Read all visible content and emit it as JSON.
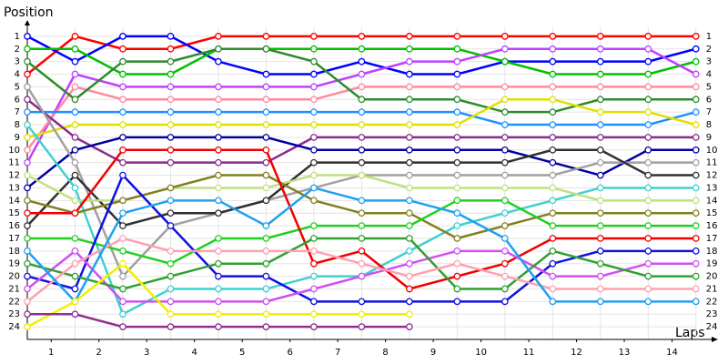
{
  "chart_data": {
    "type": "line",
    "y_label": "Position",
    "x_label": "Laps",
    "x": [
      0,
      1,
      2,
      3,
      4,
      5,
      6,
      7,
      8,
      9,
      10,
      11,
      12,
      13,
      14
    ],
    "xlim": [
      0,
      14.5
    ],
    "ylim": [
      25,
      0
    ],
    "xticks": [
      {
        "value": 0.5,
        "label": "1"
      },
      {
        "value": 1.5,
        "label": "2"
      },
      {
        "value": 2.5,
        "label": "3"
      },
      {
        "value": 3.5,
        "label": "4"
      },
      {
        "value": 4.5,
        "label": "5"
      },
      {
        "value": 5.5,
        "label": "6"
      },
      {
        "value": 6.5,
        "label": "7"
      },
      {
        "value": 7.5,
        "label": "8"
      },
      {
        "value": 8.5,
        "label": "9"
      },
      {
        "value": 9.5,
        "label": "10"
      },
      {
        "value": 10.5,
        "label": "11"
      },
      {
        "value": 11.5,
        "label": "12"
      },
      {
        "value": 12.5,
        "label": "13"
      },
      {
        "value": 13.5,
        "label": "14"
      }
    ],
    "yticks": [
      1,
      2,
      3,
      4,
      5,
      6,
      7,
      8,
      9,
      10,
      11,
      12,
      13,
      14,
      15,
      16,
      17,
      18,
      19,
      20,
      21,
      22,
      23,
      24
    ],
    "grid": true,
    "series": [
      {
        "color": "#ff0000",
        "values": [
          4,
          1,
          2,
          2,
          1,
          1,
          1,
          1,
          1,
          1,
          1,
          1,
          1,
          1,
          1
        ]
      },
      {
        "color": "#0000ff",
        "values": [
          1,
          3,
          1,
          1,
          3,
          4,
          4,
          3,
          4,
          4,
          3,
          3,
          3,
          3,
          2
        ]
      },
      {
        "color": "#00c000",
        "values": [
          2,
          2,
          4,
          4,
          2,
          2,
          2,
          2,
          2,
          2,
          3,
          4,
          4,
          4,
          3
        ]
      },
      {
        "color": "#c040ff",
        "values": [
          11,
          4,
          5,
          5,
          5,
          5,
          5,
          4,
          3,
          3,
          2,
          2,
          2,
          2,
          4
        ]
      },
      {
        "color": "#ff8aa0",
        "values": [
          10,
          5,
          6,
          6,
          6,
          6,
          6,
          5,
          5,
          5,
          5,
          5,
          5,
          5,
          5
        ]
      },
      {
        "color": "#2e8b2e",
        "values": [
          3,
          6,
          3,
          3,
          2,
          2,
          3,
          6,
          6,
          6,
          7,
          7,
          6,
          6,
          6
        ]
      },
      {
        "color": "#1e90ff",
        "values": [
          7,
          7,
          7,
          7,
          7,
          7,
          7,
          7,
          7,
          7,
          8,
          8,
          8,
          8,
          7
        ]
      },
      {
        "color": "#e0e000",
        "values": [
          9,
          8,
          8,
          8,
          8,
          8,
          8,
          8,
          8,
          8,
          6,
          6,
          7,
          7,
          8
        ]
      },
      {
        "color": "#8b2a8b",
        "values": [
          6,
          9,
          11,
          11,
          11,
          11,
          9,
          9,
          9,
          9,
          9,
          9,
          9,
          9,
          9
        ]
      },
      {
        "color": "#0000a0",
        "values": [
          13,
          10,
          9,
          9,
          9,
          9,
          10,
          10,
          10,
          10,
          10,
          11,
          12,
          10,
          10
        ]
      },
      {
        "color": "#a0a0a0",
        "values": [
          5,
          11,
          20,
          16,
          15,
          14,
          13,
          12,
          12,
          12,
          12,
          12,
          11,
          11,
          11
        ]
      },
      {
        "color": "#303030",
        "values": [
          16,
          12,
          16,
          15,
          15,
          14,
          11,
          11,
          11,
          11,
          11,
          10,
          10,
          12,
          12
        ]
      },
      {
        "color": "#40d0d0",
        "values": [
          8,
          13,
          23,
          21,
          21,
          21,
          20,
          20,
          18,
          16,
          15,
          14,
          13,
          13,
          13
        ]
      },
      {
        "color": "#c0e080",
        "values": [
          12,
          14,
          14,
          13,
          13,
          13,
          12,
          12,
          13,
          13,
          13,
          13,
          14,
          14,
          14
        ]
      },
      {
        "color": "#808020",
        "values": [
          14,
          15,
          14,
          13,
          12,
          12,
          14,
          15,
          15,
          17,
          16,
          15,
          15,
          15,
          15
        ]
      },
      {
        "color": "#20d020",
        "values": [
          17,
          17,
          18,
          19,
          17,
          17,
          16,
          16,
          16,
          14,
          14,
          16,
          16,
          16,
          16
        ]
      },
      {
        "color": "#f00000",
        "values": [
          15,
          15,
          10,
          10,
          10,
          10,
          19,
          18,
          21,
          20,
          19,
          17,
          17,
          17,
          17
        ]
      },
      {
        "color": "#1010e0",
        "values": [
          20,
          21,
          12,
          16,
          20,
          20,
          22,
          22,
          22,
          22,
          22,
          19,
          18,
          18,
          18
        ]
      },
      {
        "color": "#d050f0",
        "values": [
          21,
          18,
          22,
          22,
          22,
          22,
          21,
          20,
          19,
          18,
          18,
          20,
          20,
          19,
          19
        ]
      },
      {
        "color": "#30a030",
        "values": [
          19,
          20,
          21,
          20,
          19,
          19,
          17,
          17,
          17,
          21,
          21,
          18,
          19,
          20,
          20
        ]
      },
      {
        "color": "#ffa0b0",
        "values": [
          22,
          19,
          17,
          18,
          18,
          18,
          18,
          19,
          20,
          19,
          20,
          21,
          21,
          21,
          21
        ]
      },
      {
        "color": "#20a0f0",
        "values": [
          18,
          22,
          15,
          14,
          14,
          16,
          13,
          14,
          14,
          15,
          17,
          22,
          22,
          22,
          22
        ]
      },
      {
        "color": "#f0f000",
        "values": [
          24,
          22,
          19,
          23,
          23,
          23,
          23,
          23,
          23,
          null,
          null,
          null,
          null,
          null,
          null
        ]
      },
      {
        "color": "#903090",
        "values": [
          23,
          23,
          24,
          24,
          24,
          24,
          24,
          24,
          24,
          null,
          null,
          null,
          null,
          null,
          null
        ]
      }
    ]
  }
}
